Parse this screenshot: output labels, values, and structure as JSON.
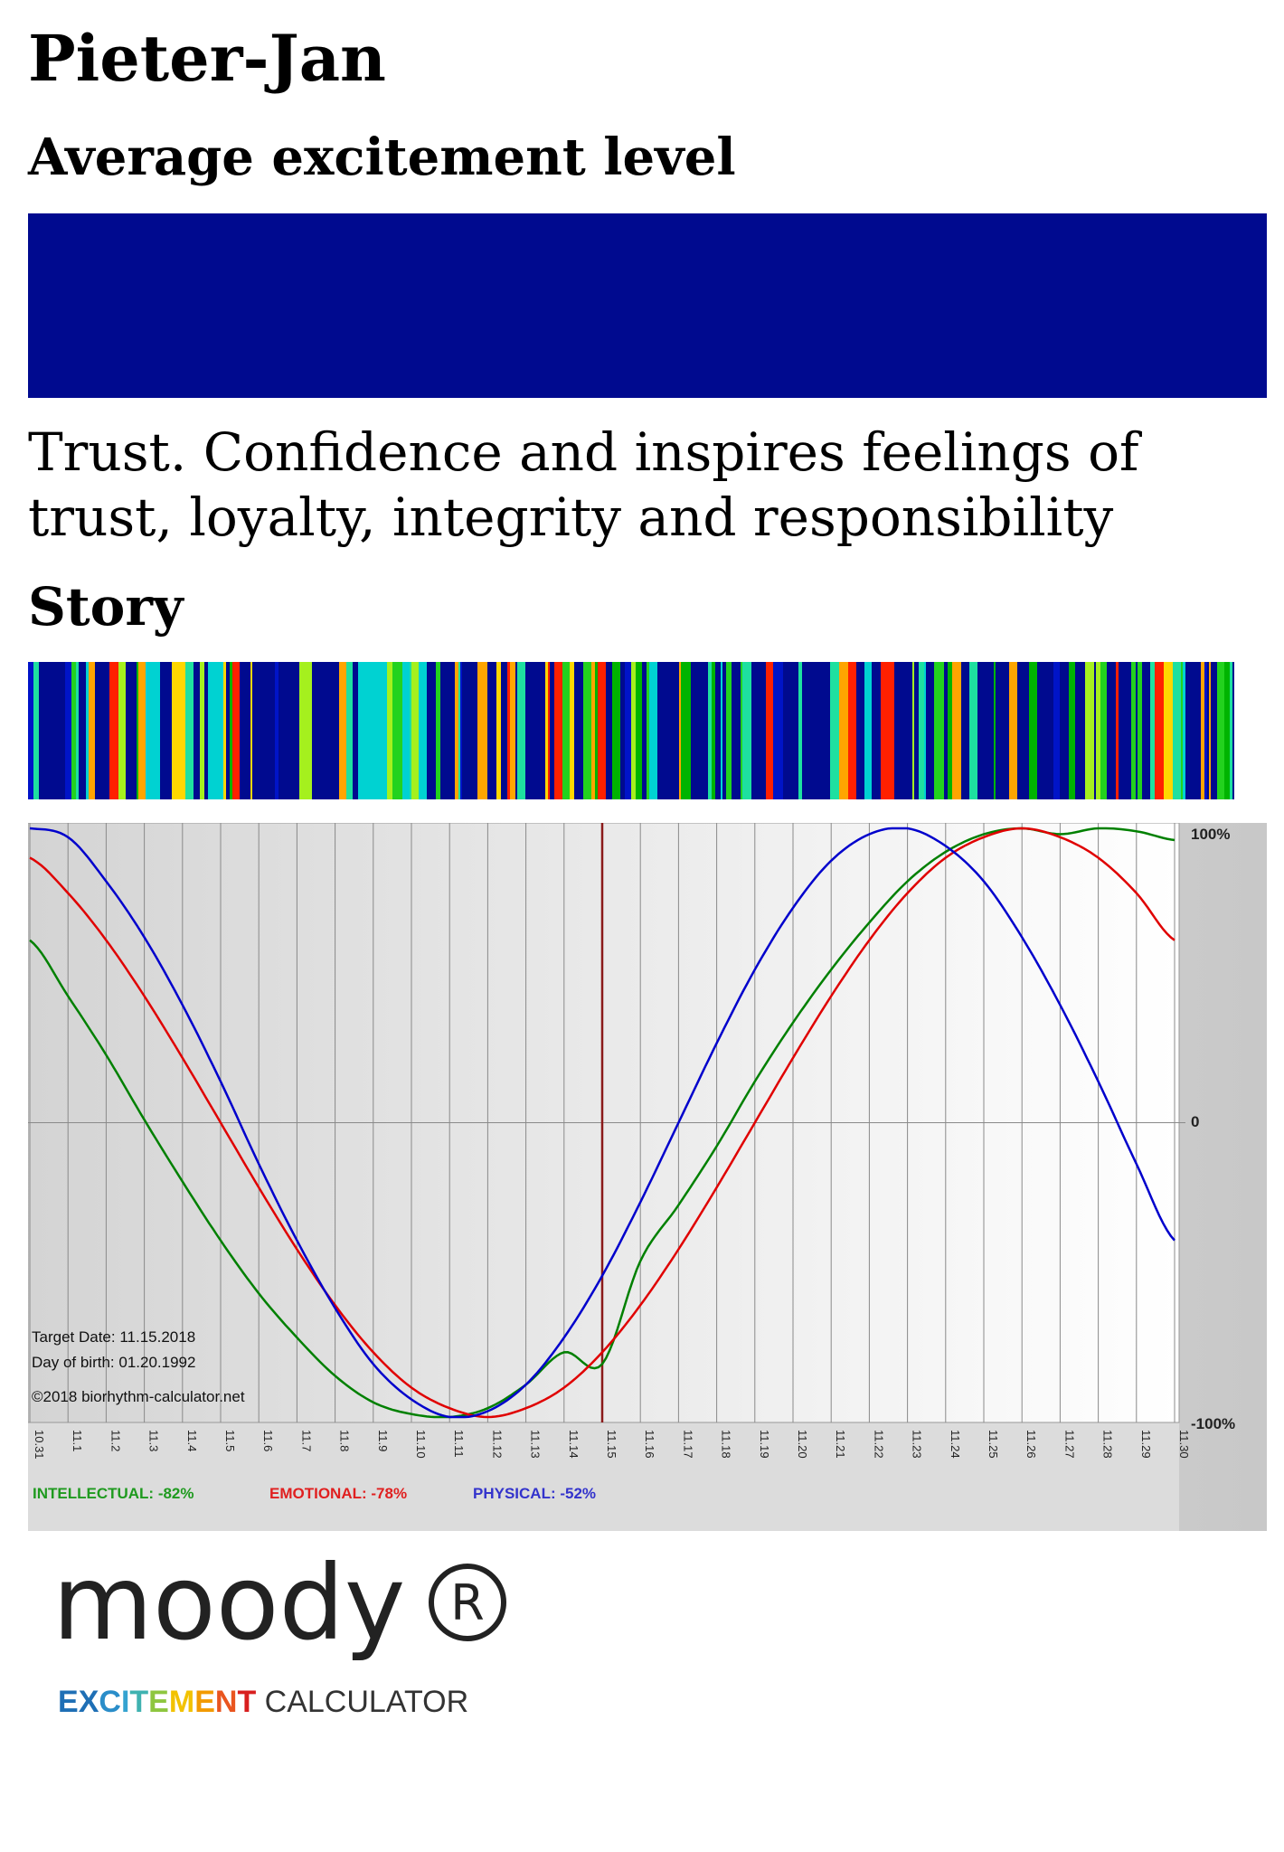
{
  "profile": {
    "name": "Pieter-Jan",
    "subtitle": "Average excitement level",
    "level_color": "#000a8f",
    "description": "Trust. Confidence and inspires feelings of trust, loyalty, integrity and responsibility",
    "story_label": "Story"
  },
  "story_colors": [
    "#000a8f",
    "#0014c8",
    "#ff2000",
    "#ffa500",
    "#00d2d2",
    "#1ee0a0",
    "#00b400",
    "#a5f01e",
    "#ffd700",
    "#23d21e"
  ],
  "chart_data": {
    "type": "line",
    "x": [
      "10.31",
      "11.1",
      "11.2",
      "11.3",
      "11.4",
      "11.5",
      "11.6",
      "11.7",
      "11.8",
      "11.9",
      "11.10",
      "11.11",
      "11.12",
      "11.13",
      "11.14",
      "11.15",
      "11.16",
      "11.17",
      "11.18",
      "11.19",
      "11.20",
      "11.21",
      "11.22",
      "11.23",
      "11.24",
      "11.25",
      "11.26",
      "11.27",
      "11.28",
      "11.29",
      "11.30"
    ],
    "series": [
      {
        "name": "INTELLECTUAL",
        "color": "#008000",
        "values": [
          62,
          43,
          23,
          1,
          -20,
          -40,
          -58,
          -73,
          -86,
          -95,
          -99,
          -100,
          -97,
          -89,
          -78,
          -82,
          -47,
          -28,
          -8,
          14,
          34,
          52,
          68,
          82,
          92,
          98,
          100,
          98,
          100,
          99,
          96
        ]
      },
      {
        "name": "EMOTIONAL",
        "color": "#e00000",
        "values": [
          90,
          78,
          62,
          43,
          22,
          0,
          -22,
          -43,
          -62,
          -78,
          -90,
          -97,
          -100,
          -97,
          -90,
          -78,
          -62,
          -43,
          -22,
          0,
          22,
          43,
          62,
          78,
          90,
          97,
          100,
          97,
          90,
          78,
          62
        ]
      },
      {
        "name": "PHYSICAL",
        "color": "#0000cc",
        "values": [
          100,
          97,
          82,
          63,
          40,
          14,
          -14,
          -40,
          -63,
          -82,
          -94,
          -100,
          -98,
          -89,
          -73,
          -52,
          -27,
          0,
          27,
          52,
          73,
          89,
          98,
          100,
          94,
          82,
          63,
          40,
          14,
          -14,
          -40
        ]
      }
    ],
    "ylim": [
      -100,
      100
    ],
    "y_ticks": [
      "100%",
      "0",
      "-100%"
    ],
    "target_date_index": 15,
    "target_line_color": "#8b1a1a",
    "annotations": [
      "Target Date: 11.15.2018",
      "Day of birth: 01.20.1992",
      "©2018 biorhythm-calculator.net"
    ],
    "legend": [
      "INTELLECTUAL: -82%",
      "EMOTIONAL: -78%",
      "PHYSICAL: -52%"
    ],
    "grid": true
  },
  "logo": {
    "wordmark": "moody",
    "reg_symbol": "R",
    "tag_colored": "EXCITEMENT",
    "tag_rest": " CALCULATOR",
    "tag_colors": [
      "#1f6fb5",
      "#1f6fb5",
      "#2a8dc9",
      "#35a3d0",
      "#3fb2b0",
      "#8ec63f",
      "#f2c200",
      "#f29a00",
      "#e9551f",
      "#d81e1e"
    ]
  }
}
